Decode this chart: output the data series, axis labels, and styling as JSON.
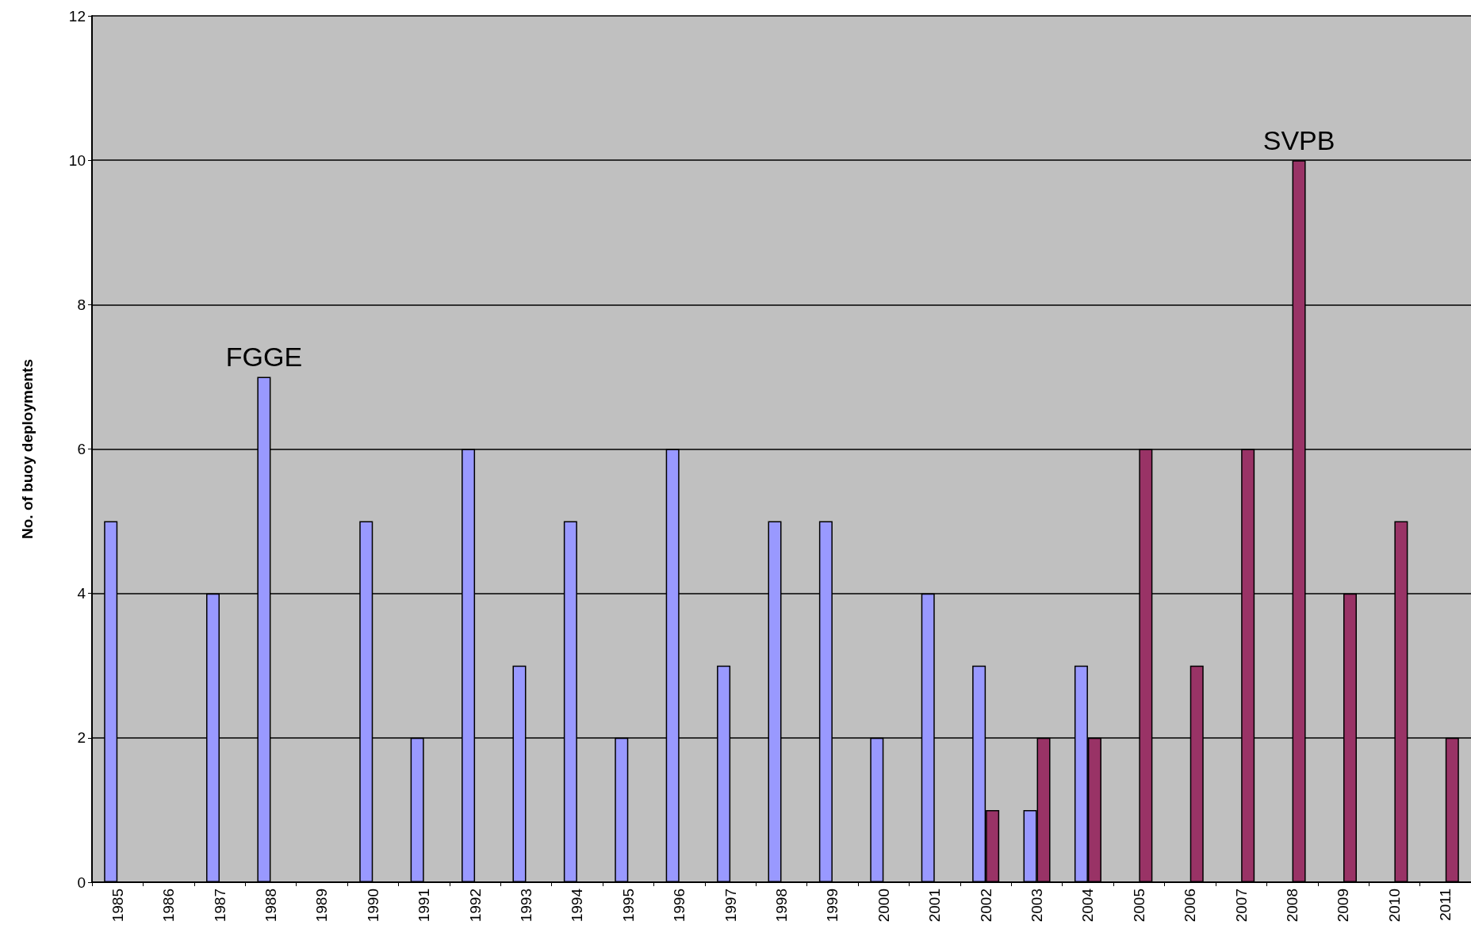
{
  "chart_data": {
    "type": "bar",
    "ylabel": "No. of buoy deployments",
    "categories": [
      "1985",
      "1986",
      "1987",
      "1988",
      "1989",
      "1990",
      "1991",
      "1992",
      "1993",
      "1994",
      "1995",
      "1996",
      "1997",
      "1998",
      "1999",
      "2000",
      "2001",
      "2002",
      "2003",
      "2004",
      "2005",
      "2006",
      "2007",
      "2008",
      "2009",
      "2010",
      "2011"
    ],
    "series": [
      {
        "name": "FGGE",
        "color": "#9999ff",
        "values": [
          5,
          null,
          4,
          7,
          null,
          5,
          2,
          6,
          3,
          5,
          2,
          6,
          3,
          5,
          5,
          2,
          4,
          3,
          1,
          3,
          null,
          null,
          null,
          null,
          null,
          null,
          null
        ]
      },
      {
        "name": "SVPB",
        "color": "#993366",
        "values": [
          null,
          null,
          null,
          null,
          null,
          null,
          null,
          null,
          null,
          null,
          null,
          null,
          null,
          null,
          null,
          null,
          null,
          1,
          2,
          2,
          6,
          3,
          6,
          10,
          4,
          5,
          2
        ]
      }
    ],
    "ylim": [
      0,
      12
    ],
    "yticks": [
      0,
      2,
      4,
      6,
      8,
      10,
      12
    ],
    "grid": "y"
  }
}
